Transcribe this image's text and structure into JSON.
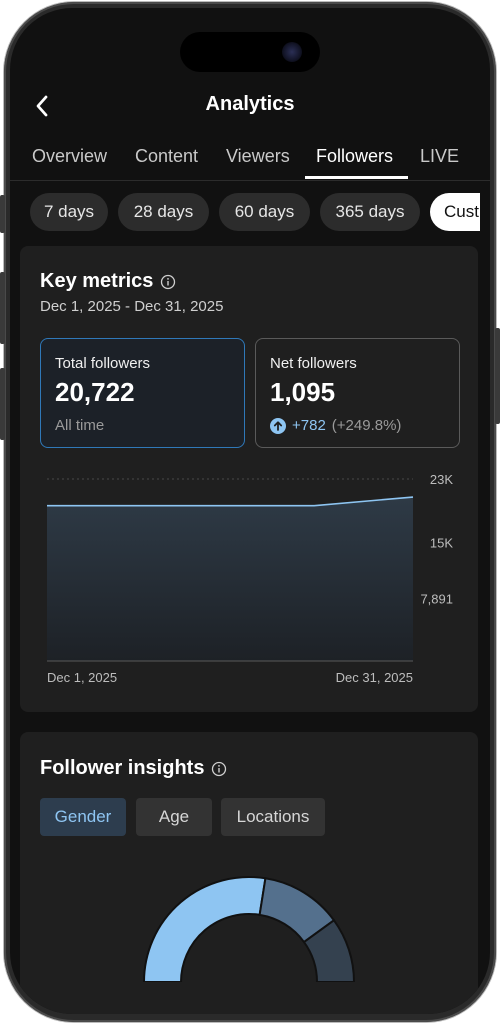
{
  "header": {
    "title": "Analytics",
    "back_icon": "chevron-left-icon"
  },
  "tabs": [
    {
      "label": "Overview",
      "active": false
    },
    {
      "label": "Content",
      "active": false
    },
    {
      "label": "Viewers",
      "active": false
    },
    {
      "label": "Followers",
      "active": true
    },
    {
      "label": "LIVE",
      "active": false
    }
  ],
  "date_ranges": [
    {
      "label": "7 days",
      "selected": false
    },
    {
      "label": "28 days",
      "selected": false
    },
    {
      "label": "60 days",
      "selected": false
    },
    {
      "label": "365 days",
      "selected": false
    },
    {
      "label": "Cust",
      "selected": true
    }
  ],
  "key_metrics": {
    "title": "Key metrics",
    "info_icon": "info-icon",
    "date_range": "Dec 1, 2025 - Dec 31, 2025",
    "total_followers": {
      "label": "Total followers",
      "value": "20,722",
      "sub": "All time"
    },
    "net_followers": {
      "label": "Net followers",
      "value": "1,095",
      "change": "+782",
      "change_pct": "(+249.8%)",
      "change_icon": "arrow-up-circle-icon"
    }
  },
  "chart_data": {
    "type": "area",
    "x": [
      "Dec 1, 2025",
      "Dec 24, 2025",
      "Dec 31, 2025"
    ],
    "values": [
      19627,
      19627,
      20722
    ],
    "ylim": [
      0,
      23000
    ],
    "yticks": [
      "23K",
      "15K",
      "7,891"
    ],
    "ytick_values": [
      23000,
      15000,
      7891
    ],
    "xtick_labels": [
      "Dec 1, 2025",
      "Dec 31, 2025"
    ],
    "grid": true,
    "color": "#8ec5f2"
  },
  "follower_insights": {
    "title": "Follower insights",
    "info_icon": "info-icon",
    "segments": [
      {
        "label": "Gender",
        "active": true
      },
      {
        "label": "Age",
        "active": false
      },
      {
        "label": "Locations",
        "active": false
      }
    ],
    "donut": {
      "type": "pie",
      "values": [
        0.55,
        0.25,
        0.2
      ],
      "colors": [
        "#8ec5f2",
        "#54708d",
        "#34414f"
      ]
    }
  }
}
